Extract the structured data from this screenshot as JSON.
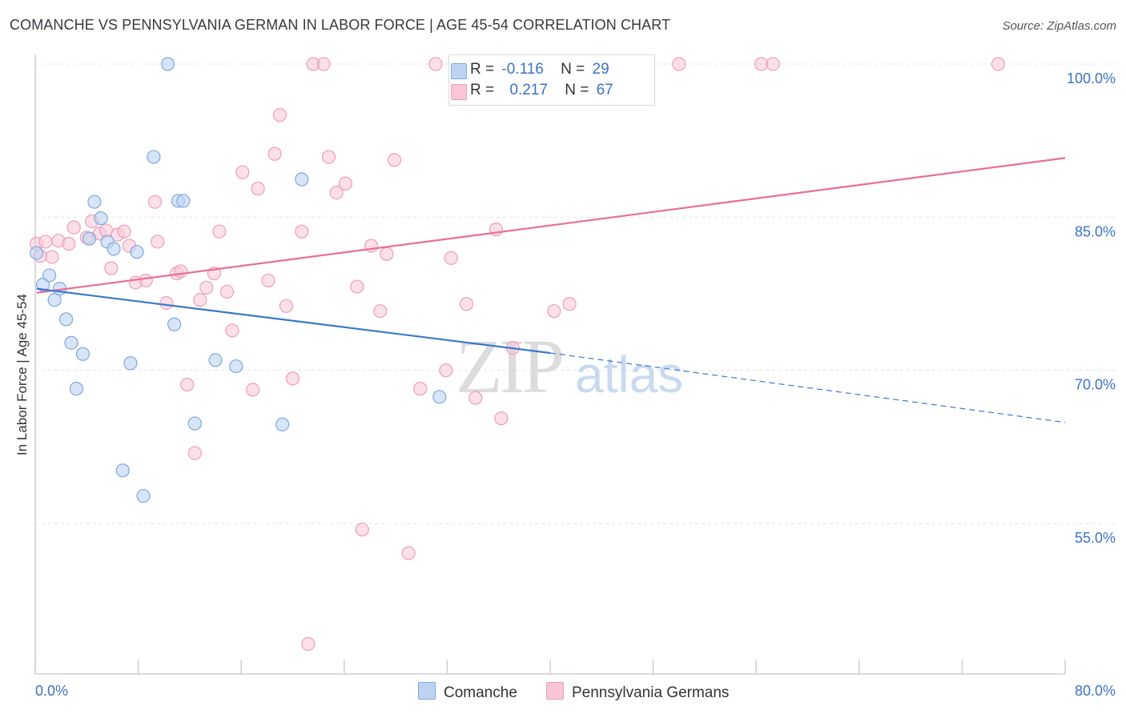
{
  "title": "COMANCHE VS PENNSYLVANIA GERMAN IN LABOR FORCE | AGE 45-54 CORRELATION CHART",
  "source": "Source: ZipAtlas.com",
  "watermark": {
    "zip": "ZIP",
    "atlas": "atlas"
  },
  "legend": {
    "rows": [
      {
        "r_label": "R =",
        "r_value": "-0.116",
        "n_label": "N =",
        "n_value": "29"
      },
      {
        "r_label": "R =",
        "r_value": "0.217",
        "n_label": "N =",
        "n_value": "67"
      }
    ]
  },
  "bottom_legend": [
    "Comanche",
    "Pennsylvania Germans"
  ],
  "colors": {
    "comanche_fill": "#bcd4f2",
    "comanche_stroke": "#7fa8de",
    "comanche_line": "#3a78d0",
    "pagerman_fill": "#f8c6d6",
    "pagerman_stroke": "#ef9db8",
    "pagerman_line": "#e86e98",
    "tick_label": "#3b73c5",
    "grid": "#e2e2e2"
  },
  "chart_data": {
    "type": "scatter",
    "title": "COMANCHE VS PENNSYLVANIA GERMAN IN LABOR FORCE | AGE 45-54 CORRELATION CHART",
    "xlabel": "",
    "ylabel": "In Labor Force | Age 45-54",
    "xlim": [
      0,
      80
    ],
    "ylim": [
      40,
      102
    ],
    "x_tick_labels": [
      "0.0%",
      "80.0%"
    ],
    "y_ticks": [
      55,
      70,
      85,
      100
    ],
    "y_tick_labels": [
      "55.0%",
      "70.0%",
      "85.0%",
      "100.0%"
    ],
    "grid": true,
    "series": [
      {
        "name": "Comanche",
        "points": [
          [
            0.1,
            81.5
          ],
          [
            0.6,
            78.4
          ],
          [
            1.1,
            79.3
          ],
          [
            1.5,
            76.9
          ],
          [
            1.9,
            78.0
          ],
          [
            2.4,
            75.0
          ],
          [
            2.8,
            72.7
          ],
          [
            3.2,
            68.2
          ],
          [
            3.7,
            71.6
          ],
          [
            4.2,
            82.9
          ],
          [
            4.6,
            86.5
          ],
          [
            5.1,
            84.9
          ],
          [
            5.6,
            82.6
          ],
          [
            6.1,
            81.9
          ],
          [
            6.8,
            60.2
          ],
          [
            7.4,
            70.7
          ],
          [
            7.9,
            81.6
          ],
          [
            8.4,
            57.7
          ],
          [
            9.2,
            90.9
          ],
          [
            10.3,
            100.0
          ],
          [
            10.8,
            74.5
          ],
          [
            11.1,
            86.6
          ],
          [
            11.5,
            86.6
          ],
          [
            12.4,
            64.8
          ],
          [
            14.0,
            71.0
          ],
          [
            15.6,
            70.4
          ],
          [
            19.2,
            64.7
          ],
          [
            20.7,
            88.7
          ],
          [
            31.4,
            67.4
          ]
        ],
        "trend": {
          "x0": 0.1,
          "y0": 78.0,
          "x1": 40,
          "y1": 71.7,
          "dash_x1": 80,
          "dash_y1": 64.9
        }
      },
      {
        "name": "Pennsylvania Germans",
        "points": [
          [
            0.1,
            82.4
          ],
          [
            0.4,
            81.2
          ],
          [
            0.8,
            82.6
          ],
          [
            1.3,
            81.1
          ],
          [
            1.8,
            82.7
          ],
          [
            2.6,
            82.4
          ],
          [
            3.0,
            84.0
          ],
          [
            4.0,
            83.0
          ],
          [
            4.4,
            84.6
          ],
          [
            5.0,
            83.4
          ],
          [
            5.5,
            83.7
          ],
          [
            5.9,
            80.0
          ],
          [
            6.4,
            83.3
          ],
          [
            6.9,
            83.6
          ],
          [
            7.3,
            82.2
          ],
          [
            7.8,
            78.6
          ],
          [
            8.6,
            78.8
          ],
          [
            9.3,
            86.5
          ],
          [
            9.5,
            82.6
          ],
          [
            10.2,
            76.6
          ],
          [
            11.0,
            79.5
          ],
          [
            11.3,
            79.7
          ],
          [
            11.8,
            68.6
          ],
          [
            12.4,
            61.9
          ],
          [
            12.8,
            76.9
          ],
          [
            13.3,
            78.1
          ],
          [
            13.9,
            79.5
          ],
          [
            14.3,
            83.6
          ],
          [
            14.9,
            77.7
          ],
          [
            15.3,
            73.9
          ],
          [
            16.1,
            89.4
          ],
          [
            16.9,
            68.1
          ],
          [
            17.3,
            87.8
          ],
          [
            18.1,
            78.8
          ],
          [
            18.6,
            91.2
          ],
          [
            19.0,
            95.0
          ],
          [
            19.5,
            76.3
          ],
          [
            20.0,
            69.2
          ],
          [
            20.7,
            83.6
          ],
          [
            21.2,
            43.2
          ],
          [
            21.6,
            100.0
          ],
          [
            22.4,
            100.0
          ],
          [
            22.8,
            90.9
          ],
          [
            23.4,
            87.4
          ],
          [
            24.1,
            88.3
          ],
          [
            25.0,
            78.2
          ],
          [
            25.4,
            54.4
          ],
          [
            26.1,
            82.2
          ],
          [
            26.8,
            75.8
          ],
          [
            27.3,
            81.4
          ],
          [
            27.9,
            90.6
          ],
          [
            29.0,
            52.1
          ],
          [
            29.9,
            68.2
          ],
          [
            31.1,
            100.0
          ],
          [
            31.9,
            70.0
          ],
          [
            32.3,
            81.0
          ],
          [
            33.5,
            76.5
          ],
          [
            34.2,
            67.3
          ],
          [
            35.8,
            83.8
          ],
          [
            36.2,
            65.3
          ],
          [
            37.1,
            72.2
          ],
          [
            40.3,
            75.8
          ],
          [
            41.5,
            76.5
          ],
          [
            50.0,
            100.0
          ],
          [
            56.4,
            100.0
          ],
          [
            57.3,
            100.0
          ],
          [
            74.8,
            100.0
          ]
        ],
        "trend": {
          "x0": 0.1,
          "y0": 77.6,
          "x1": 80,
          "y1": 90.8
        }
      }
    ]
  }
}
